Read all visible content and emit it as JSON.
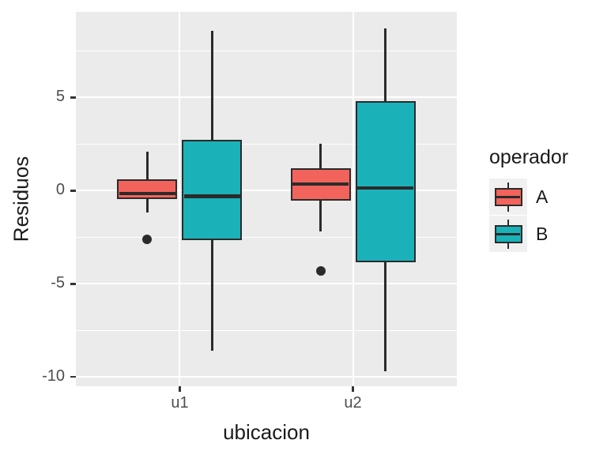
{
  "chart_data": {
    "type": "boxplot",
    "title": "",
    "xlabel": "ubicacion",
    "ylabel": "Residuos",
    "categories": [
      "u1",
      "u2"
    ],
    "ylim": [
      -10.5,
      9.6
    ],
    "yticks": [
      {
        "value": 5,
        "label": "5"
      },
      {
        "value": 0,
        "label": "0"
      },
      {
        "value": -5,
        "label": "-5"
      },
      {
        "value": -10,
        "label": "-10"
      }
    ],
    "y_minor_gridlines": [
      7.5,
      2.5,
      -2.5,
      -7.5
    ],
    "grid": true,
    "legend_position": "right",
    "legend": {
      "title": "operador",
      "entries": [
        {
          "label": "A",
          "color": "#F2635C"
        },
        {
          "label": "B",
          "color": "#1AB2B8"
        }
      ]
    },
    "series": [
      {
        "name": "A",
        "color": "#F2635C",
        "boxes": [
          {
            "category": "u1",
            "whisker_min": -1.15,
            "q1": -0.45,
            "median": -0.15,
            "q3": 0.6,
            "whisker_max": 2.1,
            "outliers": [
              -2.6
            ]
          },
          {
            "category": "u2",
            "whisker_min": -2.2,
            "q1": -0.55,
            "median": 0.35,
            "q3": 1.2,
            "whisker_max": 2.5,
            "outliers": [
              -4.3
            ]
          }
        ]
      },
      {
        "name": "B",
        "color": "#1AB2B8",
        "boxes": [
          {
            "category": "u1",
            "whisker_min": -8.6,
            "q1": -2.65,
            "median": -0.3,
            "q3": 2.75,
            "whisker_max": 8.6,
            "outliers": []
          },
          {
            "category": "u2",
            "whisker_min": -9.7,
            "q1": -3.85,
            "median": 0.15,
            "q3": 4.8,
            "whisker_max": 8.7,
            "outliers": []
          }
        ]
      }
    ],
    "colors": {
      "panel_background": "#EBEBEB",
      "gridline": "#FFFFFF",
      "box_stroke": "#2B2B2B",
      "outlier": "#2B2B2B",
      "tick_label": "#4D4D4D",
      "axis_title": "#1A1A1A",
      "legend_key_background": "#F0F0F0"
    }
  }
}
